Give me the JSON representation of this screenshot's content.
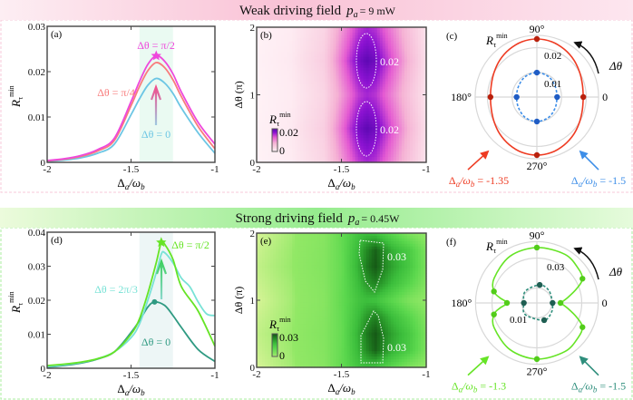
{
  "top_banner": {
    "title": "Weak driving field",
    "p": "p",
    "p_sub": "a",
    "value": "= 9 mW",
    "color_left": "#fde8f0",
    "color_right": "#f8b0cc"
  },
  "bottom_banner": {
    "title": "Strong driving field",
    "p": "p",
    "p_sub": "a",
    "value": "= 0.45W",
    "color_left": "#e8fbd8",
    "color_right": "#88e888"
  },
  "labels": {
    "xlabel": {
      "d": "Δ",
      "a": "a",
      "slash": "/ω",
      "b": "b"
    },
    "rmin": {
      "base": "R",
      "sub": "τ",
      "sup": "min"
    },
    "ylabel_dtheta": "Δθ (π)",
    "dtheta": "Δθ"
  },
  "chart_data": [
    {
      "id": "a",
      "panel_label": "(a)",
      "type": "line",
      "xlim": [
        -2,
        -1
      ],
      "ylim": [
        0,
        0.03
      ],
      "xticks": [
        -2,
        -1.5,
        -1
      ],
      "xtick_labels": [
        "-2",
        "-1.5",
        "-1"
      ],
      "yticks": [
        0,
        0.01,
        0.02,
        0.03
      ],
      "ytick_labels": [
        "0",
        "0.01",
        "0.02",
        "0.03"
      ],
      "highlight_band": [
        -1.45,
        -1.25
      ],
      "band_color": "#eafaf2",
      "series": [
        {
          "name": "Δθ = 0",
          "color": "#6cc6e4",
          "x": [
            -2,
            -1.9,
            -1.8,
            -1.7,
            -1.6,
            -1.5,
            -1.45,
            -1.4,
            -1.35,
            -1.3,
            -1.25,
            -1.2,
            -1.1,
            -1
          ],
          "y": [
            0.0002,
            0.0005,
            0.001,
            0.002,
            0.004,
            0.0105,
            0.014,
            0.017,
            0.0185,
            0.0175,
            0.0152,
            0.012,
            0.0065,
            0.002
          ]
        },
        {
          "name": "Δθ = π/4",
          "color": "#f87c7c",
          "x": [
            -2,
            -1.9,
            -1.8,
            -1.7,
            -1.6,
            -1.5,
            -1.45,
            -1.4,
            -1.35,
            -1.3,
            -1.25,
            -1.2,
            -1.1,
            -1
          ],
          "y": [
            0.0003,
            0.0007,
            0.0013,
            0.0025,
            0.0048,
            0.0125,
            0.0167,
            0.0202,
            0.022,
            0.0209,
            0.0182,
            0.0145,
            0.0079,
            0.003
          ]
        },
        {
          "name": "Δθ = π/2",
          "color": "#ee48dc",
          "x": [
            -2,
            -1.9,
            -1.8,
            -1.7,
            -1.6,
            -1.5,
            -1.45,
            -1.4,
            -1.35,
            -1.3,
            -1.25,
            -1.2,
            -1.1,
            -1
          ],
          "y": [
            0.0004,
            0.0008,
            0.0015,
            0.0028,
            0.0053,
            0.0134,
            0.0178,
            0.0216,
            0.0235,
            0.0223,
            0.0195,
            0.0155,
            0.0088,
            0.004
          ]
        }
      ],
      "markers": [
        {
          "shape": "star",
          "x": -1.35,
          "y": 0.0235,
          "color": "#ee48dc"
        }
      ]
    },
    {
      "id": "b",
      "panel_label": "(b)",
      "type": "heatmap",
      "xlim": [
        -2,
        -1
      ],
      "ylim": [
        0,
        2
      ],
      "xticks": [
        -2,
        -1.5,
        -1
      ],
      "xtick_labels": [
        "-2",
        "-1.5",
        "-1"
      ],
      "yticks": [
        0,
        1,
        2
      ],
      "ytick_labels": [
        "0",
        "1",
        "2"
      ],
      "x": [
        -2,
        -1.8,
        -1.6,
        -1.5,
        -1.4,
        -1.35,
        -1.3,
        -1.2,
        -1.1,
        -1
      ],
      "y": [
        0,
        0.25,
        0.5,
        0.75,
        1,
        1.25,
        1.5,
        1.75,
        2
      ],
      "z": [
        [
          0.0002,
          0.001,
          0.004,
          0.0105,
          0.017,
          0.0185,
          0.0175,
          0.012,
          0.0065,
          0.002
        ],
        [
          0.0002,
          0.0011,
          0.0045,
          0.0119,
          0.0192,
          0.0209,
          0.0198,
          0.0136,
          0.0073,
          0.0023
        ],
        [
          0.0003,
          0.0013,
          0.0051,
          0.0133,
          0.0216,
          0.0235,
          0.0222,
          0.0152,
          0.0083,
          0.0025
        ],
        [
          0.0002,
          0.0011,
          0.0045,
          0.0119,
          0.0192,
          0.0209,
          0.0198,
          0.0136,
          0.0073,
          0.0023
        ],
        [
          0.0002,
          0.001,
          0.004,
          0.0105,
          0.017,
          0.0185,
          0.0175,
          0.012,
          0.0065,
          0.002
        ],
        [
          0.0002,
          0.0011,
          0.0045,
          0.0119,
          0.0192,
          0.0209,
          0.0198,
          0.0136,
          0.0073,
          0.0023
        ],
        [
          0.0003,
          0.0013,
          0.0051,
          0.0133,
          0.0216,
          0.0235,
          0.0222,
          0.0152,
          0.0083,
          0.0025
        ],
        [
          0.0002,
          0.0011,
          0.0045,
          0.0119,
          0.0192,
          0.0209,
          0.0198,
          0.0136,
          0.0073,
          0.0023
        ],
        [
          0.0002,
          0.001,
          0.004,
          0.0105,
          0.017,
          0.0185,
          0.0175,
          0.012,
          0.0065,
          0.002
        ]
      ],
      "colormap": [
        [
          0,
          "#fff3f7"
        ],
        [
          0.003,
          "#fbdce8"
        ],
        [
          0.009,
          "#f5b2d4"
        ],
        [
          0.015,
          "#e45ad2"
        ],
        [
          0.02,
          "#8c12d2"
        ],
        [
          0.024,
          "#5808b0"
        ]
      ],
      "colorbar": {
        "max_label": "0.02",
        "min_label": "0"
      },
      "contour_level": "0.02"
    },
    {
      "id": "c",
      "panel_label": "(c)",
      "type": "polar",
      "rings": [
        0.01,
        0.02,
        0.025
      ],
      "ring_labels": [
        "0.01",
        "0.02"
      ],
      "angle_labels": [
        "0",
        "90°",
        "180°",
        "270°"
      ],
      "series": [
        {
          "name": "Δa/ωb = -1.35",
          "prefix_value": "= -1.35",
          "color": "#ee3b22",
          "dashed": false,
          "theta": [
            0,
            15,
            30,
            45,
            60,
            75,
            90,
            105,
            120,
            135,
            150,
            165,
            180,
            195,
            210,
            225,
            240,
            255,
            270,
            285,
            300,
            315,
            330,
            345
          ],
          "r": [
            0.0188,
            0.0191,
            0.02,
            0.0212,
            0.0223,
            0.0232,
            0.0235,
            0.0232,
            0.0223,
            0.0212,
            0.02,
            0.0191,
            0.0188,
            0.0191,
            0.02,
            0.0212,
            0.0223,
            0.0232,
            0.0235,
            0.0232,
            0.0223,
            0.0212,
            0.02,
            0.0191
          ],
          "marker_theta": [
            0,
            90,
            180,
            270
          ],
          "marker_color": "#b8200c"
        },
        {
          "name": "Δa/ωb = -1.5",
          "prefix_value": "= -1.5",
          "color": "#3d8ee8",
          "dashed": true,
          "theta": [
            0,
            30,
            60,
            90,
            120,
            150,
            180,
            210,
            240,
            270,
            300,
            330
          ],
          "r": [
            0.0082,
            0.0086,
            0.0095,
            0.0099,
            0.0095,
            0.0086,
            0.0082,
            0.0086,
            0.0095,
            0.0099,
            0.0095,
            0.0086
          ],
          "marker_theta": [
            0,
            90,
            180,
            270
          ],
          "marker_color": "#1f5cc4"
        }
      ]
    },
    {
      "id": "d",
      "panel_label": "(d)",
      "type": "line",
      "xlim": [
        -2,
        -1
      ],
      "ylim": [
        0,
        0.04
      ],
      "xticks": [
        -2,
        -1.5,
        -1
      ],
      "xtick_labels": [
        "-2",
        "-1.5",
        "-1"
      ],
      "yticks": [
        0,
        0.01,
        0.02,
        0.03,
        0.04
      ],
      "ytick_labels": [
        "0",
        "0.01",
        "0.02",
        "0.03",
        "0.04"
      ],
      "highlight_band": [
        -1.45,
        -1.25
      ],
      "band_color": "#edf6f6",
      "series": [
        {
          "name": "Δθ = 0",
          "color": "#2f9a82",
          "x": [
            -2,
            -1.9,
            -1.8,
            -1.7,
            -1.6,
            -1.5,
            -1.45,
            -1.4,
            -1.36,
            -1.3,
            -1.25,
            -1.2,
            -1.1,
            -1
          ],
          "y": [
            0.0003,
            0.0008,
            0.0015,
            0.0027,
            0.0048,
            0.0105,
            0.014,
            0.018,
            0.0195,
            0.0185,
            0.0155,
            0.012,
            0.0055,
            0.002
          ]
        },
        {
          "name": "Δθ = 2π/3",
          "color": "#78e2d6",
          "x": [
            -2,
            -1.9,
            -1.8,
            -1.7,
            -1.6,
            -1.5,
            -1.45,
            -1.4,
            -1.35,
            -1.32,
            -1.3,
            -1.25,
            -1.2,
            -1.15,
            -1.1,
            -1.05,
            -1
          ],
          "y": [
            0.0005,
            0.001,
            0.0017,
            0.0028,
            0.0048,
            0.009,
            0.013,
            0.02,
            0.028,
            0.0335,
            0.034,
            0.031,
            0.0265,
            0.024,
            0.0195,
            0.016,
            0.0155
          ]
        },
        {
          "name": "Δθ = π/2",
          "color": "#66e426",
          "x": [
            -2,
            -1.9,
            -1.8,
            -1.7,
            -1.6,
            -1.5,
            -1.45,
            -1.4,
            -1.35,
            -1.32,
            -1.3,
            -1.25,
            -1.2,
            -1.1,
            -1
          ],
          "y": [
            0.0008,
            0.0012,
            0.0018,
            0.0028,
            0.0048,
            0.01,
            0.0145,
            0.022,
            0.031,
            0.037,
            0.0365,
            0.032,
            0.024,
            0.0168,
            0.0065
          ]
        }
      ],
      "markers": [
        {
          "shape": "star",
          "x": -1.32,
          "y": 0.037,
          "color": "#66e426"
        },
        {
          "shape": "dot",
          "x": -1.36,
          "y": 0.0195,
          "color": "#2f9a82"
        }
      ]
    },
    {
      "id": "e",
      "panel_label": "(e)",
      "type": "heatmap",
      "xlim": [
        -2,
        -1
      ],
      "ylim": [
        0,
        2
      ],
      "xticks": [
        -2,
        -1.5,
        -1
      ],
      "xtick_labels": [
        "-2",
        "-1.5",
        "-1"
      ],
      "yticks": [
        0,
        1,
        2
      ],
      "ytick_labels": [
        "0",
        "1",
        "2"
      ],
      "x": [
        -2,
        -1.8,
        -1.6,
        -1.5,
        -1.4,
        -1.35,
        -1.3,
        -1.2,
        -1.1,
        -1
      ],
      "y": [
        0,
        0.25,
        0.5,
        0.75,
        1,
        1.25,
        1.5,
        1.75,
        2
      ],
      "z": [
        [
          0.0003,
          0.0015,
          0.004,
          0.0105,
          0.018,
          0.0195,
          0.0185,
          0.012,
          0.0055,
          0.002
        ],
        [
          0.0006,
          0.0017,
          0.0045,
          0.0102,
          0.021,
          0.028,
          0.033,
          0.022,
          0.016,
          0.006
        ],
        [
          0.0008,
          0.0018,
          0.0048,
          0.01,
          0.022,
          0.03,
          0.034,
          0.024,
          0.017,
          0.0065
        ],
        [
          0.0006,
          0.0016,
          0.0044,
          0.0102,
          0.02,
          0.026,
          0.029,
          0.02,
          0.013,
          0.005
        ],
        [
          0.0003,
          0.0015,
          0.004,
          0.0105,
          0.018,
          0.0195,
          0.0185,
          0.012,
          0.0055,
          0.002
        ],
        [
          0.0006,
          0.0016,
          0.0044,
          0.0102,
          0.02,
          0.026,
          0.029,
          0.02,
          0.013,
          0.005
        ],
        [
          0.0008,
          0.0018,
          0.0048,
          0.01,
          0.022,
          0.03,
          0.034,
          0.024,
          0.017,
          0.0065
        ],
        [
          0.0006,
          0.0017,
          0.0045,
          0.0102,
          0.021,
          0.028,
          0.033,
          0.022,
          0.016,
          0.006
        ],
        [
          0.0003,
          0.0015,
          0.004,
          0.0105,
          0.018,
          0.0195,
          0.0185,
          0.012,
          0.0055,
          0.002
        ]
      ],
      "colormap": [
        [
          0,
          "#e4f6a0"
        ],
        [
          0.002,
          "#92e866"
        ],
        [
          0.012,
          "#5cd84e"
        ],
        [
          0.02,
          "#3cbe3c"
        ],
        [
          0.028,
          "#238a24"
        ],
        [
          0.035,
          "#145214"
        ]
      ],
      "colorbar": {
        "max_label": "0.03",
        "min_label": "0"
      },
      "contour_level": "0.03"
    },
    {
      "id": "f",
      "panel_label": "(f)",
      "type": "polar",
      "rings": [
        0.01,
        0.03,
        0.041
      ],
      "ring_labels": [
        "0.01",
        "0.03"
      ],
      "angle_labels": [
        "0",
        "90°",
        "180°",
        "270°"
      ],
      "series": [
        {
          "name": "Δa/ωb = -1.3",
          "prefix_value": "= -1.3",
          "color": "#66e426",
          "dashed": false,
          "theta": [
            0,
            10,
            20,
            28,
            40,
            60,
            90,
            120,
            150,
            165,
            172,
            180,
            188,
            195,
            210,
            240,
            270,
            300,
            320,
            332,
            340,
            350
          ],
          "r": [
            0.0158,
            0.021,
            0.0285,
            0.0345,
            0.036,
            0.0375,
            0.037,
            0.036,
            0.033,
            0.0297,
            0.025,
            0.02,
            0.025,
            0.0297,
            0.033,
            0.036,
            0.0375,
            0.0375,
            0.036,
            0.0345,
            0.0285,
            0.021
          ],
          "marker_theta": [
            0,
            28,
            90,
            165,
            180,
            195,
            270,
            332
          ],
          "marker_color": "#52cc1a"
        },
        {
          "name": "Δa/ωb = -1.5",
          "prefix_value": "= -1.5",
          "color": "#2e8e7c",
          "dashed": true,
          "theta": [
            0,
            45,
            81,
            135,
            180,
            225,
            293,
            330
          ],
          "r": [
            0.0105,
            0.0115,
            0.0122,
            0.011,
            0.0087,
            0.011,
            0.0125,
            0.0115
          ],
          "marker_theta": [
            0,
            81,
            180,
            293
          ],
          "marker_color": "#1f5e52"
        }
      ]
    }
  ]
}
